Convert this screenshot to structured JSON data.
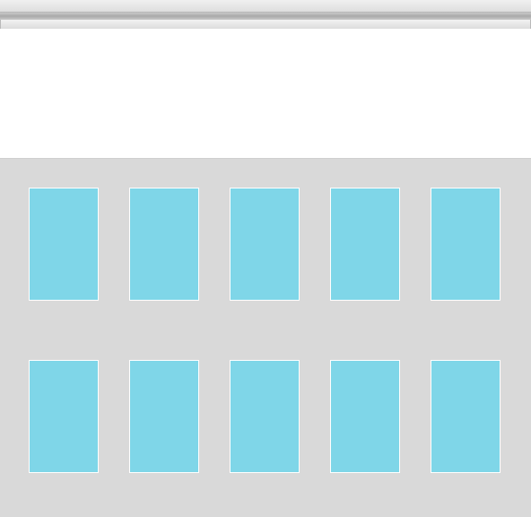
{
  "window": {
    "toolbar": {
      "top_bar": "",
      "bottom_bar": ""
    }
  },
  "main": {
    "panel": {
      "background_color": "#d9d9d9",
      "tile_color": "#7fd6e8",
      "rows": [
        {
          "tiles": [
            "",
            "",
            "",
            "",
            ""
          ]
        },
        {
          "tiles": [
            "",
            "",
            "",
            "",
            ""
          ]
        }
      ]
    }
  }
}
